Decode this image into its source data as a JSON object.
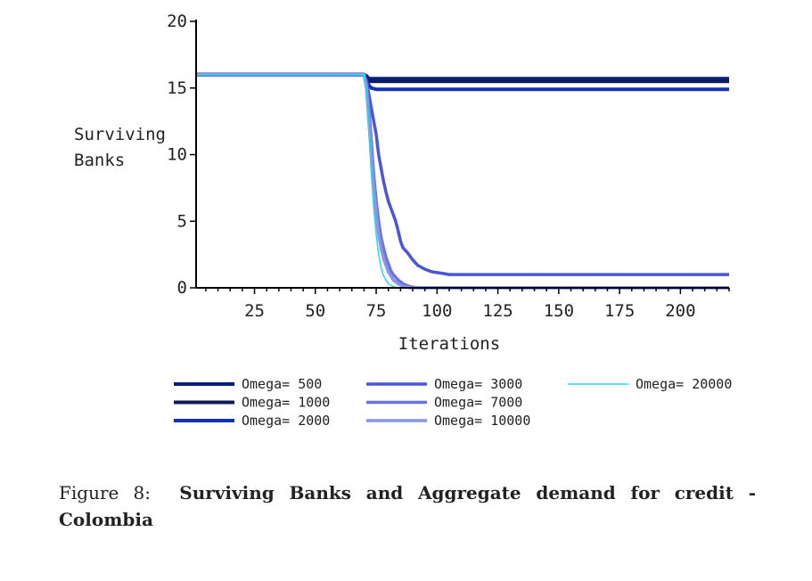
{
  "chart_data": {
    "type": "line",
    "xlabel": "Iterations",
    "ylabel": [
      "Surviving",
      "Banks"
    ],
    "xlim": [
      1,
      220
    ],
    "ylim": [
      0,
      20
    ],
    "xticks": [
      25,
      50,
      75,
      100,
      125,
      150,
      175,
      200
    ],
    "xtick_labels": [
      "25",
      "50",
      "75",
      "100",
      "125",
      "150",
      "175",
      "200"
    ],
    "yticks": [
      0,
      5,
      10,
      15,
      20
    ],
    "ytick_labels": [
      "0",
      "5",
      "10",
      "15",
      "20"
    ],
    "grid": false,
    "legend_position": "bottom",
    "series": [
      {
        "name": "Omega= 500",
        "color": "#0a1f7a",
        "x": [
          1,
          70,
          71,
          72,
          220
        ],
        "y": [
          16,
          16,
          15.9,
          15.7,
          15.7
        ]
      },
      {
        "name": "Omega= 1000",
        "color": "#0d1a5e",
        "x": [
          1,
          70,
          71,
          72,
          220
        ],
        "y": [
          16,
          16,
          15.8,
          15.5,
          15.5
        ]
      },
      {
        "name": "Omega= 2000",
        "color": "#1230b8",
        "x": [
          1,
          70,
          71,
          72,
          73,
          75,
          220
        ],
        "y": [
          16,
          16,
          15.6,
          15.2,
          15.0,
          14.9,
          14.9
        ]
      },
      {
        "name": "Omega= 3000",
        "color": "#4a55d8",
        "x": [
          1,
          70,
          71,
          72,
          73,
          74,
          75,
          76,
          77,
          78,
          79,
          80,
          81,
          82,
          83,
          84,
          85,
          86,
          88,
          90,
          92,
          95,
          98,
          102,
          105,
          220
        ],
        "y": [
          16,
          16,
          15.5,
          14.5,
          13.5,
          12.5,
          11.5,
          10.0,
          9.0,
          8.0,
          7.2,
          6.5,
          6.0,
          5.5,
          5.0,
          4.3,
          3.5,
          3.0,
          2.6,
          2.1,
          1.7,
          1.4,
          1.2,
          1.1,
          1.0,
          1.0
        ]
      },
      {
        "name": "Omega= 7000",
        "color": "#6a74e0",
        "x": [
          1,
          70,
          71,
          72,
          73,
          74,
          75,
          76,
          77,
          78,
          79,
          80,
          81,
          82,
          84,
          86,
          88,
          90,
          93,
          220
        ],
        "y": [
          16,
          16,
          15.3,
          13.5,
          11.0,
          8.5,
          6.5,
          5.0,
          3.8,
          3.0,
          2.3,
          1.8,
          1.3,
          1.0,
          0.6,
          0.3,
          0.15,
          0.05,
          0,
          0
        ]
      },
      {
        "name": "Omega= 10000",
        "color": "#8a94e8",
        "x": [
          1,
          70,
          71,
          72,
          73,
          74,
          75,
          76,
          77,
          78,
          80,
          82,
          84,
          86,
          89,
          220
        ],
        "y": [
          16,
          16,
          15.0,
          12.5,
          10.0,
          7.5,
          5.5,
          4.0,
          3.0,
          2.2,
          1.2,
          0.6,
          0.3,
          0.1,
          0,
          0
        ]
      },
      {
        "name": "Omega= 20000",
        "color": "#2ad8e8",
        "x": [
          1,
          70,
          71,
          72,
          73,
          74,
          75,
          76,
          77,
          78,
          80,
          82,
          84,
          87,
          220
        ],
        "y": [
          16,
          16,
          14.5,
          11.5,
          8.5,
          6.0,
          4.0,
          2.5,
          1.5,
          0.9,
          0.3,
          0.1,
          0.02,
          0,
          0
        ]
      }
    ]
  },
  "caption": {
    "label": "Figure 8:",
    "title": "Surviving Banks and Aggregate demand for credit - Colombia"
  }
}
